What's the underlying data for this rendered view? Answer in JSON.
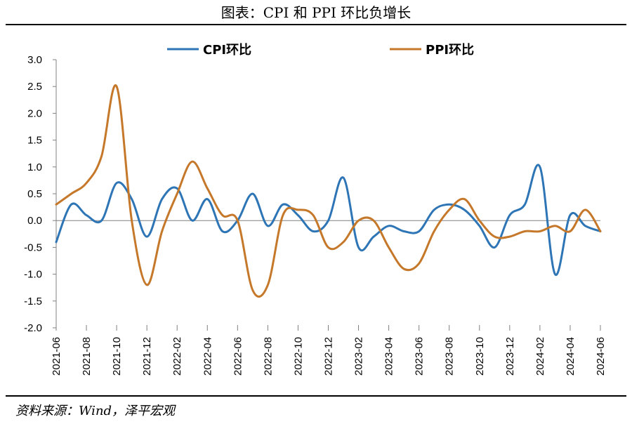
{
  "header": {
    "title": "图表：CPI 和 PPI 环比负增长"
  },
  "footer": {
    "source": "资料来源：Wind，泽平宏观"
  },
  "chart_data": {
    "type": "line",
    "title": "图表：CPI 和 PPI 环比负增长",
    "ylim": [
      -2.0,
      3.0
    ],
    "y_ticks": [
      "3.0",
      "2.5",
      "2.0",
      "1.5",
      "1.0",
      "0.5",
      "0.0",
      "-0.5",
      "-1.0",
      "-1.5",
      "-2.0"
    ],
    "x_tick_labels": [
      "2021-06",
      "2021-08",
      "2021-10",
      "2021-12",
      "2022-02",
      "2022-04",
      "2022-06",
      "2022-08",
      "2022-10",
      "2022-12",
      "2023-02",
      "2023-04",
      "2023-06",
      "2023-08",
      "2023-10",
      "2023-12",
      "2024-02",
      "2024-04",
      "2024-06"
    ],
    "x": [
      "2021-06",
      "2021-07",
      "2021-08",
      "2021-09",
      "2021-10",
      "2021-11",
      "2021-12",
      "2022-01",
      "2022-02",
      "2022-03",
      "2022-04",
      "2022-05",
      "2022-06",
      "2022-07",
      "2022-08",
      "2022-09",
      "2022-10",
      "2022-11",
      "2022-12",
      "2023-01",
      "2023-02",
      "2023-03",
      "2023-04",
      "2023-05",
      "2023-06",
      "2023-07",
      "2023-08",
      "2023-09",
      "2023-10",
      "2023-11",
      "2023-12",
      "2024-01",
      "2024-02",
      "2024-03",
      "2024-04",
      "2024-05",
      "2024-06"
    ],
    "series": [
      {
        "name": "CPI环比",
        "color": "#2E75B6",
        "values": [
          -0.4,
          0.3,
          0.1,
          0.0,
          0.7,
          0.4,
          -0.3,
          0.4,
          0.6,
          0.0,
          0.4,
          -0.2,
          0.0,
          0.5,
          -0.1,
          0.3,
          0.1,
          -0.2,
          0.0,
          0.8,
          -0.5,
          -0.3,
          -0.1,
          -0.2,
          -0.2,
          0.2,
          0.3,
          0.2,
          -0.1,
          -0.5,
          0.1,
          0.3,
          1.0,
          -1.0,
          0.1,
          -0.1,
          -0.2
        ]
      },
      {
        "name": "PPI环比",
        "color": "#C5782A",
        "values": [
          0.3,
          0.5,
          0.7,
          1.2,
          2.5,
          0.0,
          -1.2,
          -0.2,
          0.5,
          1.1,
          0.6,
          0.1,
          0.0,
          -1.3,
          -1.2,
          0.1,
          0.2,
          0.1,
          -0.5,
          -0.4,
          0.0,
          0.0,
          -0.5,
          -0.9,
          -0.8,
          -0.2,
          0.2,
          0.4,
          0.0,
          -0.3,
          -0.3,
          -0.2,
          -0.2,
          -0.1,
          -0.2,
          0.2,
          -0.2
        ]
      }
    ],
    "legend_position": "top",
    "grid": false
  }
}
